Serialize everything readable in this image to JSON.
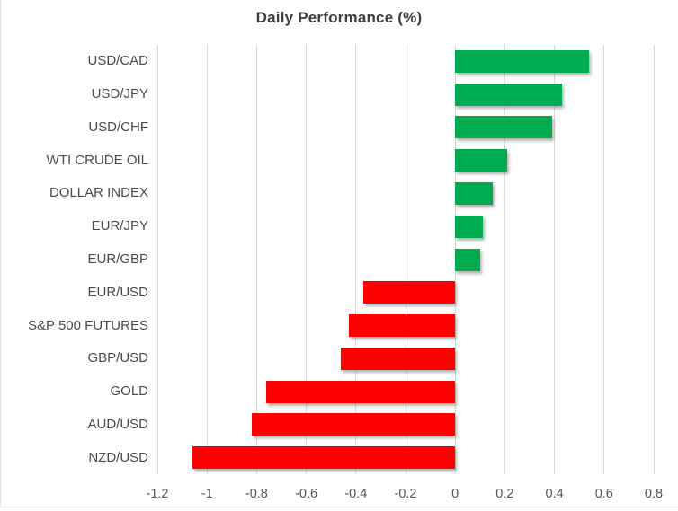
{
  "chart_data": {
    "type": "bar",
    "orientation": "horizontal",
    "title": "Daily Performance (%)",
    "categories": [
      "USD/CAD",
      "USD/JPY",
      "USD/CHF",
      "WTI CRUDE OIL",
      "DOLLAR INDEX",
      "EUR/JPY",
      "EUR/GBP",
      "EUR/USD",
      "S&P 500 FUTURES",
      "GBP/USD",
      "GOLD",
      "AUD/USD",
      "NZD/USD"
    ],
    "values": [
      0.54,
      0.43,
      0.39,
      0.21,
      0.15,
      0.11,
      0.1,
      -0.37,
      -0.43,
      -0.46,
      -0.76,
      -0.82,
      -1.06
    ],
    "xlim": [
      -1.2,
      0.8
    ],
    "xticks": [
      -1.2,
      -1,
      -0.8,
      -0.6,
      -0.4,
      -0.2,
      0,
      0.2,
      0.4,
      0.6,
      0.8
    ],
    "xtick_labels": [
      "-1.2",
      "-1",
      "-0.8",
      "-0.6",
      "-0.4",
      "-0.2",
      "0",
      "0.2",
      "0.4",
      "0.6",
      "0.8"
    ],
    "xlabel": "",
    "ylabel": "",
    "grid": "vertical-only",
    "legend": "none",
    "colors": {
      "positive_bar": "#00ac4f",
      "negative_bar": "#ff0000",
      "gridline": "#d9d9d9",
      "title_text": "#3f3f3f",
      "axis_text": "#555555"
    }
  }
}
